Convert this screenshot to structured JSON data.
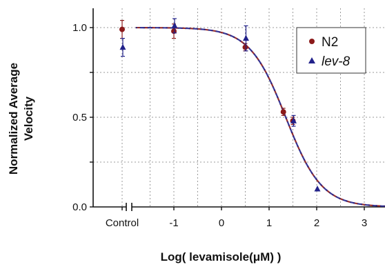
{
  "chart_data": {
    "type": "scatter",
    "xlabel": "Log( levamisole(μM) )",
    "ylabel_lines": [
      "Normalized Average",
      "Velocity"
    ],
    "x_ticks": [
      {
        "x": "control",
        "label": "Control"
      },
      {
        "x": -1,
        "label": "-1"
      },
      {
        "x": 0,
        "label": "0"
      },
      {
        "x": 1,
        "label": "1"
      },
      {
        "x": 2,
        "label": "2"
      },
      {
        "x": 3,
        "label": "3"
      }
    ],
    "y_ticks": [
      {
        "y": 0.0,
        "label": "0.0"
      },
      {
        "y": 0.5,
        "label": "0.5"
      },
      {
        "y": 1.0,
        "label": "1.0"
      }
    ],
    "xlim": [
      -1.6,
      3.5
    ],
    "ylim": [
      0.0,
      1.1
    ],
    "grid": true,
    "broken_x_axis": true,
    "legend_position": "top-right",
    "series": [
      {
        "name": "N2",
        "italic": false,
        "marker": "circle",
        "color": "#8b1a1a",
        "points": [
          {
            "x": "control",
            "y": 0.99,
            "err": 0.05
          },
          {
            "x": -1,
            "y": 0.98,
            "err": 0.04
          },
          {
            "x": 0.5,
            "y": 0.89,
            "err": 0.02
          },
          {
            "x": 1.3,
            "y": 0.53,
            "err": 0.02
          },
          {
            "x": 1.5,
            "y": 0.48,
            "err": 0.02
          }
        ],
        "fit": {
          "top": 1.0,
          "bottom": 0.0,
          "logEC50": 1.35,
          "hill": 1.15
        }
      },
      {
        "name": "lev-8",
        "italic": true,
        "marker": "triangle",
        "color": "#22228b",
        "points": [
          {
            "x": "control",
            "y": 0.89,
            "err": 0.05
          },
          {
            "x": -1,
            "y": 1.01,
            "err": 0.04
          },
          {
            "x": 0.5,
            "y": 0.94,
            "err": 0.07
          },
          {
            "x": 1.5,
            "y": 0.48,
            "err": 0.03
          },
          {
            "x": 2.0,
            "y": 0.1,
            "err": 0.0
          }
        ],
        "fit": {
          "top": 1.0,
          "bottom": 0.0,
          "logEC50": 1.35,
          "hill": 1.15
        }
      }
    ]
  }
}
